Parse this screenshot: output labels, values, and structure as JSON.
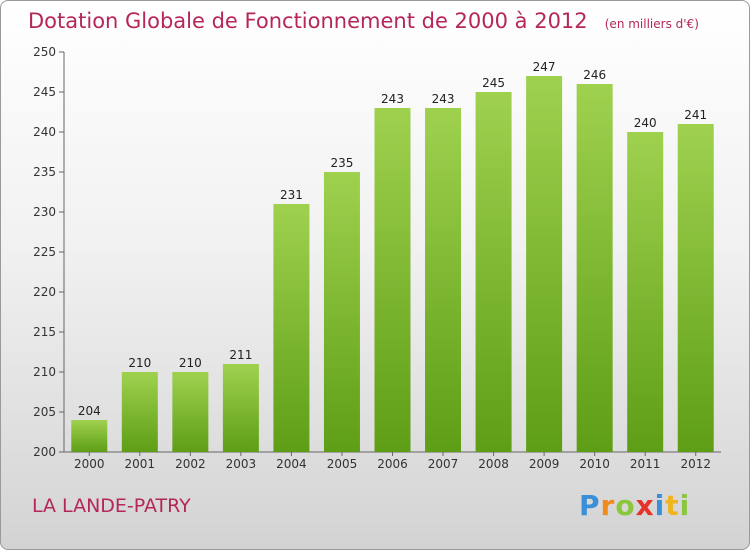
{
  "chart_data": {
    "type": "bar",
    "title": "Dotation Globale de Fonctionnement de 2000 à 2012",
    "unit_note": "(en milliers d'€)",
    "categories": [
      "2000",
      "2001",
      "2002",
      "2003",
      "2004",
      "2005",
      "2006",
      "2007",
      "2008",
      "2009",
      "2010",
      "2011",
      "2012"
    ],
    "values": [
      204,
      210,
      210,
      211,
      231,
      235,
      243,
      243,
      245,
      247,
      246,
      240,
      241
    ],
    "ylim": [
      200,
      250
    ],
    "yticks": [
      200,
      205,
      210,
      215,
      220,
      225,
      230,
      235,
      240,
      245,
      250
    ],
    "grid": false,
    "bar_color_top": "#9fd14f",
    "bar_color_bottom": "#5e9e16"
  },
  "place": "LA LANDE-PATRY",
  "logo": {
    "letters": [
      "P",
      "r",
      "o",
      "x",
      "i",
      "t",
      "i"
    ],
    "colors": [
      "#3a8fd8",
      "#f08a1c",
      "#8cc63f",
      "#e6332a",
      "#3a8fd8",
      "#f0b41c",
      "#8cc63f"
    ]
  }
}
